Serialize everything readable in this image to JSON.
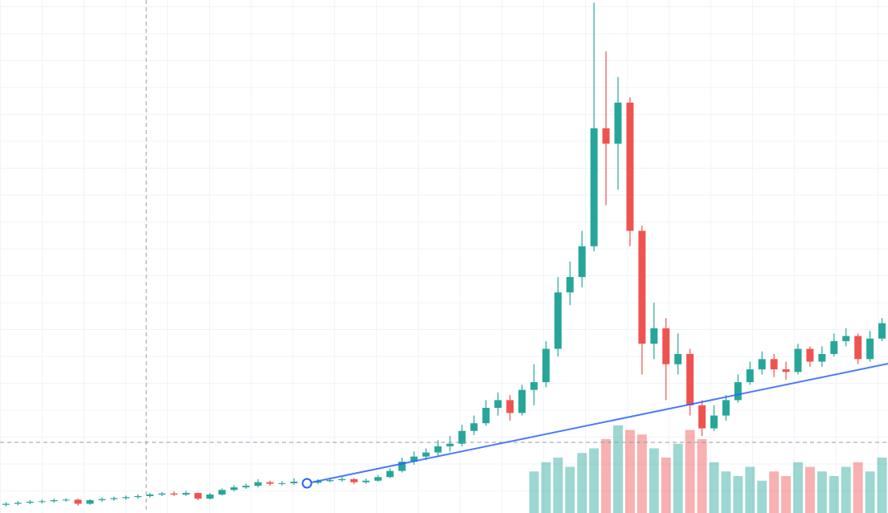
{
  "chart_data": {
    "type": "candlestick",
    "open": [
      1.6,
      1.8,
      2.0,
      2.2,
      2.3,
      2.5,
      2.6,
      1.8,
      2.5,
      2.7,
      2.9,
      3.1,
      3.3,
      3.6,
      3.8,
      3.6,
      3.9,
      2.8,
      3.6,
      4.5,
      5.0,
      5.3,
      6.0,
      5.7,
      5.8,
      6.1,
      5.9,
      6.2,
      6.4,
      6.6,
      6.0,
      6.3,
      7.0,
      8.2,
      10.0,
      11.0,
      11.8,
      13.0,
      13.5,
      16.0,
      17.5,
      20.5,
      22.0,
      19.5,
      24.0,
      25.5,
      32.0,
      43.0,
      46.0,
      52.0,
      75.0,
      72.0,
      80.0,
      55.0,
      33.0,
      36.0,
      29.0,
      31.0,
      21.0,
      16.5,
      19.0,
      22.0,
      25.5,
      28.0,
      30.0,
      28.0,
      27.5,
      32.0,
      29.5,
      31.0,
      33.5,
      34.5,
      30.0,
      34.0
    ],
    "high": [
      2.1,
      2.3,
      2.5,
      2.6,
      2.8,
      2.9,
      2.8,
      2.7,
      3.0,
      3.2,
      3.4,
      3.6,
      3.9,
      4.1,
      4.2,
      4.3,
      4.0,
      3.9,
      4.8,
      5.4,
      5.7,
      6.6,
      6.3,
      6.2,
      6.8,
      6.4,
      6.6,
      6.8,
      7.0,
      6.8,
      6.7,
      7.4,
      8.7,
      10.8,
      12.0,
      12.6,
      14.2,
      15.0,
      17.2,
      19.0,
      22.0,
      23.5,
      23.0,
      25.0,
      29.0,
      33.5,
      46.0,
      49.0,
      55.0,
      99.5,
      90.0,
      85.0,
      81.0,
      56.0,
      41.0,
      38.0,
      35.0,
      32.0,
      22.0,
      21.0,
      23.0,
      27.0,
      29.5,
      31.5,
      31.0,
      29.5,
      33.0,
      32.5,
      32.5,
      35.0,
      36.0,
      35.0,
      35.5,
      38.0
    ],
    "low": [
      1.3,
      1.5,
      1.7,
      1.9,
      2.0,
      2.2,
      1.4,
      1.6,
      2.2,
      2.4,
      2.6,
      2.8,
      3.0,
      3.3,
      3.3,
      3.3,
      2.5,
      2.6,
      3.4,
      4.2,
      4.7,
      5.0,
      5.3,
      5.4,
      5.5,
      5.5,
      5.6,
      6.0,
      6.1,
      5.6,
      5.7,
      6.1,
      6.8,
      7.9,
      9.4,
      10.3,
      11.0,
      12.0,
      13.0,
      15.2,
      17.0,
      19.0,
      18.0,
      19.0,
      21.0,
      24.5,
      30.5,
      40.5,
      44.0,
      51.0,
      60.0,
      63.0,
      52.0,
      27.0,
      30.0,
      22.0,
      27.0,
      19.0,
      15.0,
      16.0,
      18.0,
      21.5,
      25.0,
      27.0,
      26.5,
      26.0,
      27.0,
      28.5,
      28.5,
      30.5,
      32.5,
      29.0,
      29.5,
      33.5
    ],
    "close": [
      1.8,
      2.0,
      2.2,
      2.3,
      2.5,
      2.6,
      1.8,
      2.5,
      2.7,
      2.9,
      3.1,
      3.3,
      3.6,
      3.8,
      3.6,
      3.9,
      2.8,
      3.6,
      4.5,
      5.0,
      5.3,
      6.0,
      5.7,
      5.8,
      6.1,
      5.9,
      6.2,
      6.4,
      6.6,
      6.0,
      6.3,
      7.0,
      8.2,
      10.0,
      11.0,
      11.8,
      13.0,
      13.5,
      16.0,
      17.5,
      20.5,
      22.0,
      19.5,
      24.0,
      25.5,
      32.0,
      43.0,
      46.0,
      52.0,
      75.0,
      72.0,
      80.0,
      55.0,
      33.0,
      36.0,
      29.0,
      31.0,
      21.0,
      16.5,
      19.0,
      22.0,
      25.5,
      28.0,
      30.0,
      28.0,
      27.5,
      32.0,
      29.5,
      31.0,
      33.5,
      34.5,
      30.0,
      34.0,
      37.0
    ],
    "volume": [
      null,
      null,
      null,
      null,
      null,
      null,
      null,
      null,
      null,
      null,
      null,
      null,
      null,
      null,
      null,
      null,
      null,
      null,
      null,
      null,
      null,
      null,
      null,
      null,
      null,
      null,
      null,
      null,
      null,
      null,
      null,
      null,
      null,
      null,
      null,
      null,
      null,
      null,
      null,
      null,
      null,
      null,
      null,
      null,
      45,
      55,
      60,
      50,
      65,
      70,
      80,
      95,
      90,
      85,
      70,
      60,
      75,
      90,
      80,
      55,
      45,
      40,
      50,
      35,
      45,
      40,
      55,
      50,
      45,
      40,
      50,
      55,
      45,
      60
    ],
    "up_color": "#26a69a",
    "down_color": "#ef5350",
    "ylim": [
      0,
      100
    ],
    "volume_lim": [
      0,
      100
    ]
  }
}
